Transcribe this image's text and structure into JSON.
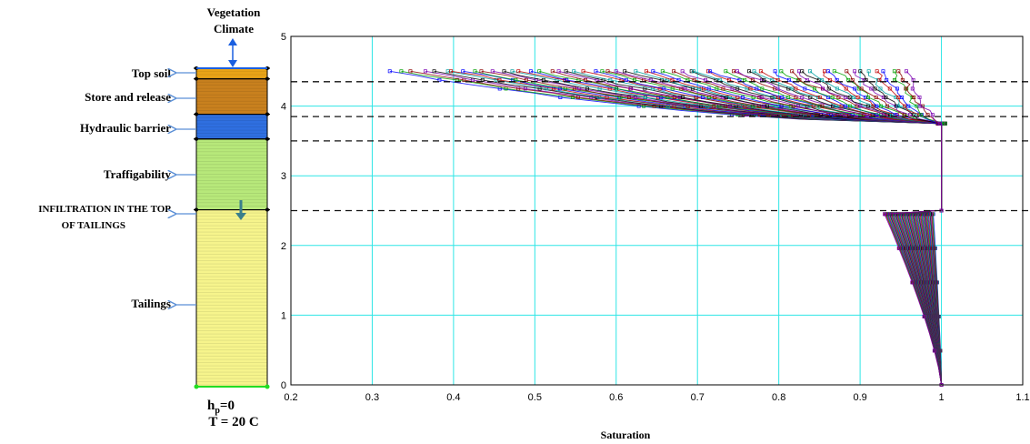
{
  "column": {
    "top_labels": [
      "Vegetation",
      "Climate"
    ],
    "layers": [
      {
        "name": "Top soil",
        "top": 4.5,
        "bottom": 4.35,
        "color": "#e8a317"
      },
      {
        "name": "Store and release",
        "top": 4.35,
        "bottom": 3.85,
        "color": "#c8801e"
      },
      {
        "name": "Hydraulic barrier",
        "top": 3.85,
        "bottom": 3.5,
        "color": "#2f6fe0"
      },
      {
        "name": "Traffigability",
        "top": 3.5,
        "bottom": 2.5,
        "color": "#b7e87a"
      },
      {
        "name": "Tailings",
        "top": 2.5,
        "bottom": 0,
        "color": "#f6f48c"
      }
    ],
    "infiltration_label": [
      "INFILTRATION IN THE TOP",
      "OF TAILINGS"
    ],
    "boundary_conditions": [
      "h",
      "p",
      "=0",
      "T = 20 C"
    ]
  },
  "chart_data": {
    "type": "line",
    "title": "",
    "xlabel": "Saturation",
    "ylabel": "",
    "xlim": [
      0.2,
      1.1
    ],
    "ylim": [
      0,
      5
    ],
    "x_ticks": [
      "0.2",
      "0.3",
      "0.4",
      "0.5",
      "0.6",
      "0.7",
      "0.8",
      "0.9",
      "1",
      "1.1"
    ],
    "y_ticks": [
      "0",
      "1",
      "2",
      "3",
      "4",
      "5"
    ],
    "grid": true,
    "layer_boundaries_y": [
      4.35,
      3.85,
      3.5,
      2.5
    ],
    "profile_envelope": {
      "upper_zone_y": [
        3.85,
        4.5
      ],
      "upper_zone_x_min": 0.32,
      "transition_zone_x": 1.0,
      "lower_zone_y": [
        0,
        2.5
      ],
      "lower_zone_x_min": 0.93
    },
    "series_colors": [
      "#0000ff",
      "#00a000",
      "#8b0000",
      "#7a00b0",
      "#000000",
      "#00a0a0",
      "#c00000"
    ]
  }
}
